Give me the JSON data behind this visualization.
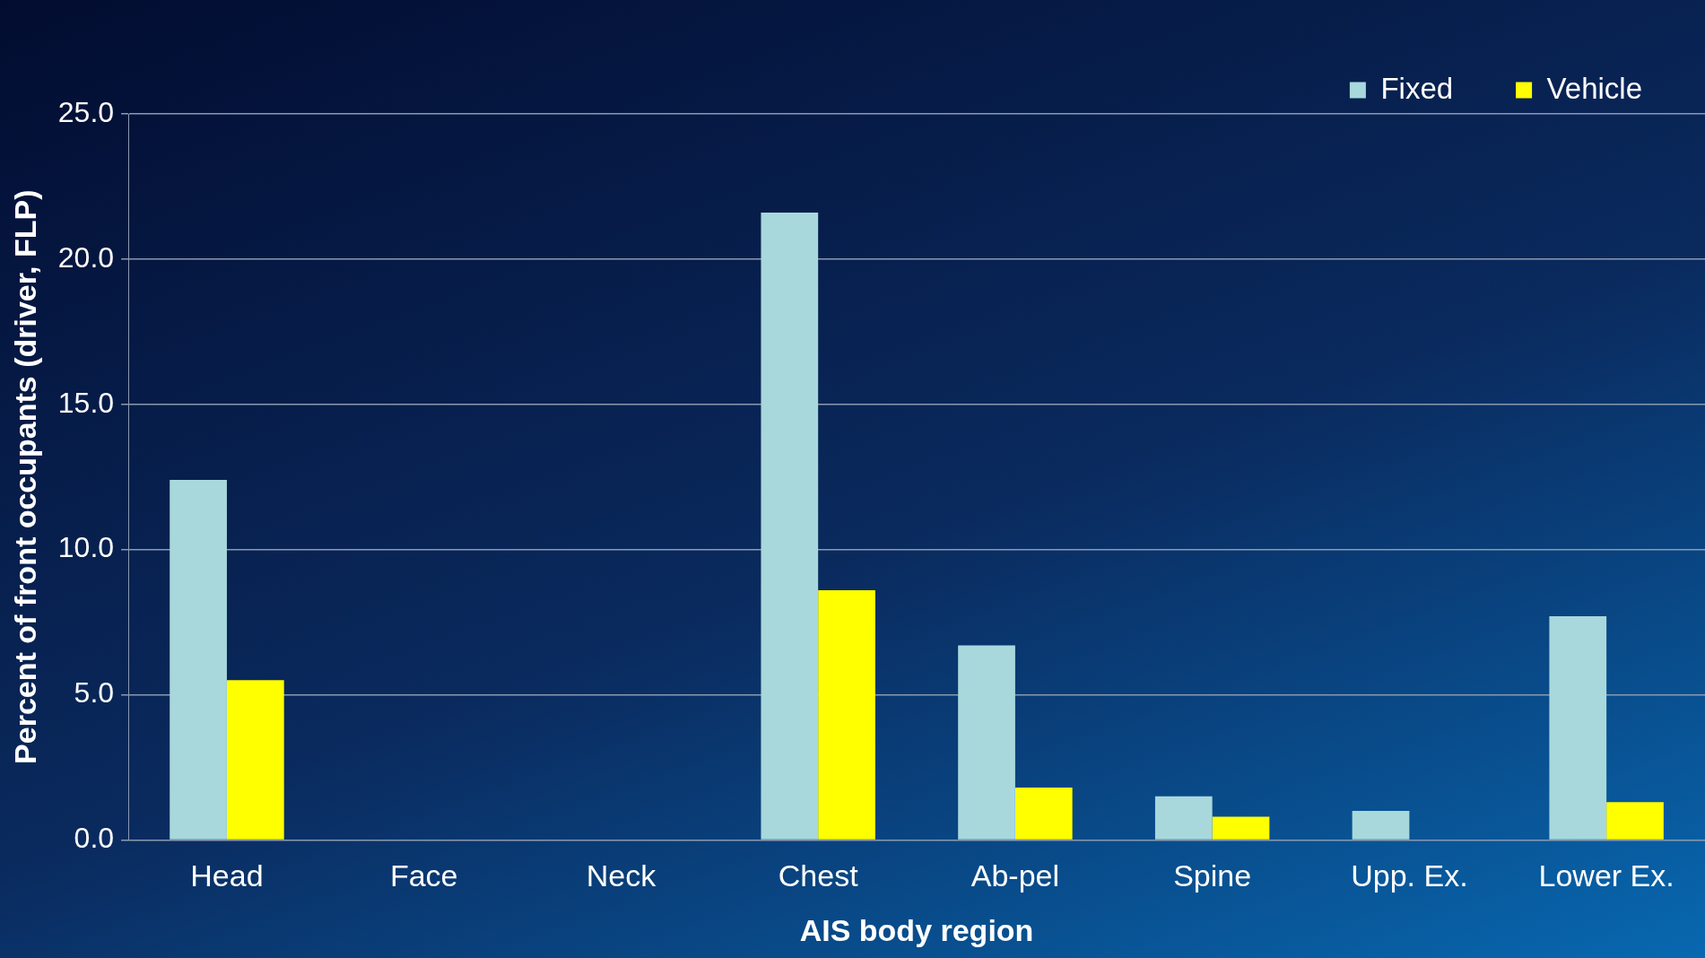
{
  "chart_data": {
    "type": "bar",
    "xlabel": "AIS body region",
    "ylabel": "Percent of front occupants (driver, FLP)",
    "categories": [
      "Head",
      "Face",
      "Neck",
      "Chest",
      "Ab-pel",
      "Spine",
      "Upp. Ex.",
      "Lower Ex."
    ],
    "series": [
      {
        "name": "Fixed",
        "color": "#a8d8dc",
        "values": [
          12.4,
          0,
          0,
          21.6,
          6.7,
          1.5,
          1.0,
          7.7
        ]
      },
      {
        "name": "Vehicle",
        "color": "#ffff00",
        "values": [
          5.5,
          0,
          0,
          8.6,
          1.8,
          0.8,
          0,
          1.3
        ]
      }
    ],
    "ylim": [
      0,
      25
    ],
    "yticks": [
      {
        "value": 0,
        "label": "0.0"
      },
      {
        "value": 5,
        "label": "5.0"
      },
      {
        "value": 10,
        "label": "10.0"
      },
      {
        "value": 15,
        "label": "15.0"
      },
      {
        "value": 20,
        "label": "20.0"
      },
      {
        "value": 25,
        "label": "25.0"
      }
    ],
    "grid": "y",
    "legend": "top right"
  }
}
